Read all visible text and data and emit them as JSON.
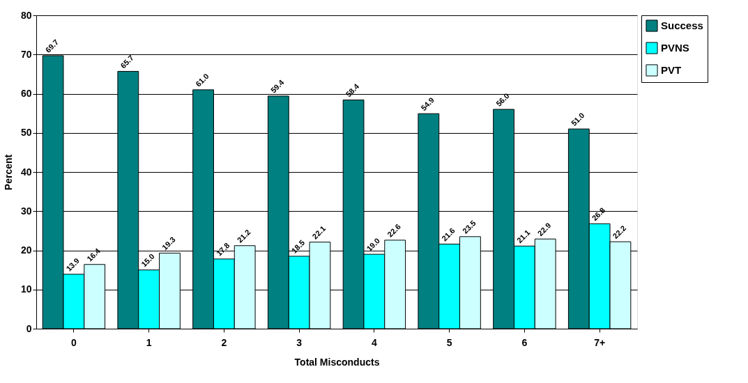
{
  "chart_data": {
    "type": "bar",
    "xlabel": "Total Misconducts",
    "ylabel": "Percent",
    "categories": [
      "0",
      "1",
      "2",
      "3",
      "4",
      "5",
      "6",
      "7+"
    ],
    "series": [
      {
        "name": "Success",
        "color": "#008080",
        "values": [
          69.7,
          65.7,
          61.0,
          59.4,
          58.4,
          54.9,
          56.0,
          51.0
        ],
        "value_labels": [
          "69.7",
          "65.7",
          "61.0",
          "59.4",
          "58.4",
          "54.9",
          "56.0",
          "51.0"
        ]
      },
      {
        "name": "PVNS",
        "color": "#00ffff",
        "values": [
          13.9,
          15.0,
          17.8,
          18.5,
          19.0,
          21.6,
          21.1,
          26.8
        ],
        "value_labels": [
          "13.9",
          "15.0",
          "17.8",
          "18.5",
          "19.0",
          "21.6",
          "21.1",
          "26.8"
        ]
      },
      {
        "name": "PVT",
        "color": "#ccffff",
        "values": [
          16.4,
          19.3,
          21.2,
          22.1,
          22.6,
          23.5,
          22.9,
          22.2
        ],
        "value_labels": [
          "16.4",
          "19.3",
          "21.2",
          "22.1",
          "22.6",
          "23.5",
          "22.9",
          "22.2"
        ]
      }
    ],
    "ylim": [
      0,
      80
    ],
    "yticks": [
      0,
      10,
      20,
      30,
      40,
      50,
      60,
      70,
      80
    ],
    "grid": "y",
    "legend": "right"
  }
}
